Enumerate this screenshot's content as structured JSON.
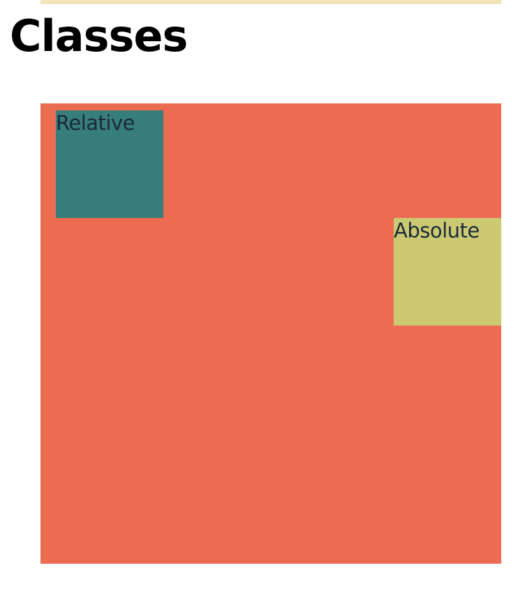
{
  "page": {
    "title": "Classes"
  },
  "boxes": {
    "relative_label": "Relative",
    "absolute_label": "Absolute"
  },
  "colors": {
    "top_bar": "#f2e3b8",
    "container": "#ec6c51",
    "relative_box": "#377d7a",
    "absolute_box": "#cbca73",
    "box_text": "#1b2a3a"
  }
}
